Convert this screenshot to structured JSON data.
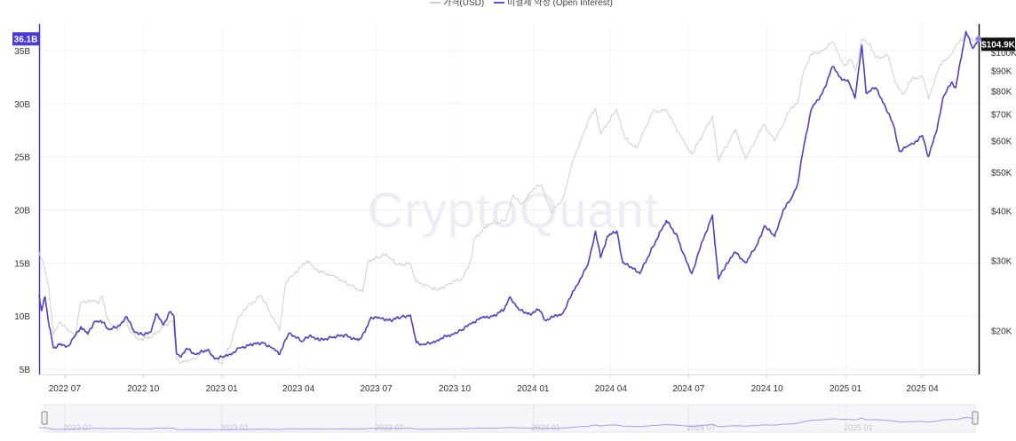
{
  "chart_data": {
    "type": "line",
    "watermark": "CryptoQuant",
    "legend": {
      "price_label": "가격(USD)",
      "oi_label": "미결제 약정 (Open Interest)"
    },
    "colors": {
      "price": "#cfcfcf",
      "oi": "#4f3fc7",
      "axis": "#4b3bd6",
      "badge_dark": "#111111"
    },
    "x_labels": [
      "2022 07",
      "2022 10",
      "2023 01",
      "2023 04",
      "2023 07",
      "2023 10",
      "2024 01",
      "2024 04",
      "2024 07",
      "2024 10",
      "2025 01",
      "2025 04"
    ],
    "x_label_dates": [
      "2022-07-01",
      "2022-10-01",
      "2023-01-01",
      "2023-04-01",
      "2023-07-01",
      "2023-10-01",
      "2024-01-01",
      "2024-04-01",
      "2024-07-01",
      "2024-10-01",
      "2025-01-01",
      "2025-04-01"
    ],
    "x_range": [
      "2022-06-01",
      "2025-06-06"
    ],
    "left_axis": {
      "ticks": [
        "5B",
        "10B",
        "15B",
        "20B",
        "25B",
        "30B",
        "35B"
      ],
      "tick_values": [
        5,
        10,
        15,
        20,
        25,
        30,
        35
      ],
      "range": [
        4.5,
        37.5
      ],
      "unit": "B",
      "current_badge": "36.1B",
      "current_value": 36.1
    },
    "right_axis": {
      "scale": "log",
      "ticks": [
        "$20K",
        "$30K",
        "$40K",
        "$50K",
        "$60K",
        "$70K",
        "$80K",
        "$90K",
        "$100K"
      ],
      "tick_values": [
        20,
        30,
        40,
        50,
        60,
        70,
        80,
        90,
        100
      ],
      "range": [
        15.5,
        118
      ],
      "current_badge": "$104.9K",
      "current_value": 104.9
    },
    "series": [
      {
        "name": "가격(USD)",
        "axis": "right",
        "unit": "K USD",
        "points": [
          [
            "2022-06-01",
            31.5
          ],
          [
            "2022-06-05",
            30.0
          ],
          [
            "2022-06-12",
            26.0
          ],
          [
            "2022-06-18",
            19.5
          ],
          [
            "2022-06-25",
            21.0
          ],
          [
            "2022-07-05",
            20.0
          ],
          [
            "2022-07-13",
            19.5
          ],
          [
            "2022-07-20",
            23.5
          ],
          [
            "2022-07-30",
            23.8
          ],
          [
            "2022-08-10",
            23.5
          ],
          [
            "2022-08-14",
            24.4
          ],
          [
            "2022-08-20",
            21.3
          ],
          [
            "2022-09-01",
            20.0
          ],
          [
            "2022-09-10",
            21.5
          ],
          [
            "2022-09-15",
            20.0
          ],
          [
            "2022-09-25",
            19.0
          ],
          [
            "2022-10-10",
            19.2
          ],
          [
            "2022-10-25",
            20.5
          ],
          [
            "2022-11-05",
            21.2
          ],
          [
            "2022-11-09",
            17.0
          ],
          [
            "2022-11-15",
            16.6
          ],
          [
            "2022-11-30",
            17.0
          ],
          [
            "2022-12-14",
            17.8
          ],
          [
            "2022-12-31",
            16.5
          ],
          [
            "2023-01-12",
            18.5
          ],
          [
            "2023-01-20",
            21.5
          ],
          [
            "2023-02-01",
            23.0
          ],
          [
            "2023-02-16",
            24.5
          ],
          [
            "2023-03-10",
            20.0
          ],
          [
            "2023-03-17",
            26.5
          ],
          [
            "2023-03-25",
            27.5
          ],
          [
            "2023-04-11",
            30.0
          ],
          [
            "2023-04-20",
            28.5
          ],
          [
            "2023-05-10",
            27.5
          ],
          [
            "2023-05-25",
            26.5
          ],
          [
            "2023-06-15",
            25.0
          ],
          [
            "2023-06-22",
            30.0
          ],
          [
            "2023-07-05",
            30.5
          ],
          [
            "2023-07-13",
            31.2
          ],
          [
            "2023-07-25",
            29.2
          ],
          [
            "2023-08-10",
            29.5
          ],
          [
            "2023-08-17",
            26.5
          ],
          [
            "2023-09-01",
            25.8
          ],
          [
            "2023-09-11",
            25.2
          ],
          [
            "2023-09-25",
            26.3
          ],
          [
            "2023-10-10",
            27.0
          ],
          [
            "2023-10-20",
            30.0
          ],
          [
            "2023-10-24",
            34.0
          ],
          [
            "2023-11-10",
            37.0
          ],
          [
            "2023-11-30",
            37.8
          ],
          [
            "2023-12-08",
            43.8
          ],
          [
            "2023-12-18",
            41.5
          ],
          [
            "2024-01-02",
            45.5
          ],
          [
            "2024-01-11",
            46.5
          ],
          [
            "2024-01-22",
            39.5
          ],
          [
            "2024-02-05",
            43.0
          ],
          [
            "2024-02-15",
            52.0
          ],
          [
            "2024-02-28",
            62.0
          ],
          [
            "2024-03-05",
            67.0
          ],
          [
            "2024-03-14",
            72.5
          ],
          [
            "2024-03-20",
            62.5
          ],
          [
            "2024-04-08",
            72.0
          ],
          [
            "2024-04-17",
            61.0
          ],
          [
            "2024-05-01",
            57.5
          ],
          [
            "2024-05-20",
            71.0
          ],
          [
            "2024-06-05",
            71.5
          ],
          [
            "2024-06-24",
            60.5
          ],
          [
            "2024-07-05",
            55.5
          ],
          [
            "2024-07-29",
            69.0
          ],
          [
            "2024-08-05",
            53.5
          ],
          [
            "2024-08-25",
            64.0
          ],
          [
            "2024-09-06",
            54.0
          ],
          [
            "2024-09-27",
            66.0
          ],
          [
            "2024-10-10",
            60.0
          ],
          [
            "2024-10-29",
            72.5
          ],
          [
            "2024-11-06",
            75.0
          ],
          [
            "2024-11-13",
            90.0
          ],
          [
            "2024-11-22",
            99.0
          ],
          [
            "2024-12-05",
            101.0
          ],
          [
            "2024-12-17",
            106.5
          ],
          [
            "2024-12-30",
            92.5
          ],
          [
            "2025-01-07",
            96.0
          ],
          [
            "2025-01-13",
            90.0
          ],
          [
            "2025-01-20",
            108.0
          ],
          [
            "2025-01-30",
            105.0
          ],
          [
            "2025-02-05",
            97.0
          ],
          [
            "2025-02-20",
            98.0
          ],
          [
            "2025-02-28",
            84.0
          ],
          [
            "2025-03-10",
            78.5
          ],
          [
            "2025-03-20",
            86.0
          ],
          [
            "2025-04-02",
            87.0
          ],
          [
            "2025-04-08",
            76.5
          ],
          [
            "2025-04-22",
            93.5
          ],
          [
            "2025-05-01",
            96.5
          ],
          [
            "2025-05-09",
            103.0
          ],
          [
            "2025-05-22",
            111.0
          ],
          [
            "2025-05-28",
            108.0
          ],
          [
            "2025-06-06",
            104.9
          ]
        ]
      },
      {
        "name": "미결제 약정 (Open Interest)",
        "axis": "left",
        "unit": "B USD",
        "points": [
          [
            "2022-06-01",
            12.0
          ],
          [
            "2022-06-04",
            10.5
          ],
          [
            "2022-06-08",
            11.8
          ],
          [
            "2022-06-13",
            9.0
          ],
          [
            "2022-06-18",
            7.0
          ],
          [
            "2022-06-25",
            7.3
          ],
          [
            "2022-07-05",
            7.2
          ],
          [
            "2022-07-12",
            8.0
          ],
          [
            "2022-07-20",
            9.0
          ],
          [
            "2022-07-28",
            8.3
          ],
          [
            "2022-08-05",
            9.5
          ],
          [
            "2022-08-15",
            9.4
          ],
          [
            "2022-08-22",
            8.7
          ],
          [
            "2022-09-01",
            9.0
          ],
          [
            "2022-09-12",
            9.9
          ],
          [
            "2022-09-20",
            8.6
          ],
          [
            "2022-10-01",
            8.2
          ],
          [
            "2022-10-10",
            8.5
          ],
          [
            "2022-10-16",
            10.2
          ],
          [
            "2022-10-25",
            9.2
          ],
          [
            "2022-11-01",
            10.4
          ],
          [
            "2022-11-06",
            10.0
          ],
          [
            "2022-11-09",
            6.5
          ],
          [
            "2022-11-13",
            6.2
          ],
          [
            "2022-11-22",
            6.9
          ],
          [
            "2022-12-01",
            6.4
          ],
          [
            "2022-12-15",
            6.8
          ],
          [
            "2022-12-25",
            6.0
          ],
          [
            "2023-01-05",
            6.2
          ],
          [
            "2023-01-15",
            6.6
          ],
          [
            "2023-01-22",
            7.0
          ],
          [
            "2023-02-05",
            7.3
          ],
          [
            "2023-02-18",
            7.5
          ],
          [
            "2023-03-01",
            7.0
          ],
          [
            "2023-03-10",
            6.4
          ],
          [
            "2023-03-15",
            7.5
          ],
          [
            "2023-03-22",
            8.4
          ],
          [
            "2023-04-05",
            7.6
          ],
          [
            "2023-04-15",
            8.2
          ],
          [
            "2023-04-25",
            7.7
          ],
          [
            "2023-05-10",
            8.0
          ],
          [
            "2023-05-25",
            8.2
          ],
          [
            "2023-06-10",
            7.7
          ],
          [
            "2023-06-18",
            8.5
          ],
          [
            "2023-06-25",
            9.9
          ],
          [
            "2023-07-05",
            9.8
          ],
          [
            "2023-07-18",
            9.6
          ],
          [
            "2023-07-30",
            9.9
          ],
          [
            "2023-08-10",
            10.1
          ],
          [
            "2023-08-17",
            7.5
          ],
          [
            "2023-08-25",
            7.3
          ],
          [
            "2023-09-05",
            7.5
          ],
          [
            "2023-09-15",
            7.9
          ],
          [
            "2023-09-28",
            8.3
          ],
          [
            "2023-10-10",
            8.7
          ],
          [
            "2023-10-20",
            9.3
          ],
          [
            "2023-11-01",
            9.8
          ],
          [
            "2023-11-15",
            10.0
          ],
          [
            "2023-11-28",
            10.6
          ],
          [
            "2023-12-05",
            11.8
          ],
          [
            "2023-12-15",
            10.6
          ],
          [
            "2023-12-28",
            10.2
          ],
          [
            "2024-01-08",
            10.6
          ],
          [
            "2024-01-15",
            9.6
          ],
          [
            "2024-01-25",
            9.9
          ],
          [
            "2024-02-05",
            10.3
          ],
          [
            "2024-02-15",
            12.0
          ],
          [
            "2024-02-25",
            13.5
          ],
          [
            "2024-03-05",
            14.8
          ],
          [
            "2024-03-14",
            18.0
          ],
          [
            "2024-03-20",
            15.5
          ],
          [
            "2024-03-28",
            17.5
          ],
          [
            "2024-04-08",
            18.0
          ],
          [
            "2024-04-15",
            15.0
          ],
          [
            "2024-04-28",
            14.5
          ],
          [
            "2024-05-05",
            14.0
          ],
          [
            "2024-05-20",
            16.5
          ],
          [
            "2024-06-05",
            19.0
          ],
          [
            "2024-06-18",
            17.5
          ],
          [
            "2024-06-24",
            16.0
          ],
          [
            "2024-07-05",
            14.0
          ],
          [
            "2024-07-15",
            16.5
          ],
          [
            "2024-07-29",
            19.5
          ],
          [
            "2024-08-05",
            13.5
          ],
          [
            "2024-08-15",
            15.0
          ],
          [
            "2024-08-25",
            16.0
          ],
          [
            "2024-09-06",
            15.0
          ],
          [
            "2024-09-20",
            16.8
          ],
          [
            "2024-09-28",
            18.5
          ],
          [
            "2024-10-10",
            17.5
          ],
          [
            "2024-10-20",
            20.0
          ],
          [
            "2024-10-29",
            21.0
          ],
          [
            "2024-11-06",
            22.5
          ],
          [
            "2024-11-13",
            26.0
          ],
          [
            "2024-11-22",
            29.5
          ],
          [
            "2024-12-05",
            31.0
          ],
          [
            "2024-12-17",
            33.5
          ],
          [
            "2024-12-25",
            32.5
          ],
          [
            "2025-01-05",
            32.0
          ],
          [
            "2025-01-12",
            30.5
          ],
          [
            "2025-01-20",
            35.5
          ],
          [
            "2025-01-25",
            31.0
          ],
          [
            "2025-02-05",
            31.5
          ],
          [
            "2025-02-15",
            30.0
          ],
          [
            "2025-02-26",
            28.0
          ],
          [
            "2025-03-05",
            25.5
          ],
          [
            "2025-03-15",
            26.0
          ],
          [
            "2025-03-25",
            26.5
          ],
          [
            "2025-04-01",
            27.0
          ],
          [
            "2025-04-08",
            25.0
          ],
          [
            "2025-04-18",
            27.5
          ],
          [
            "2025-04-25",
            30.5
          ],
          [
            "2025-05-05",
            32.0
          ],
          [
            "2025-05-10",
            31.5
          ],
          [
            "2025-05-18",
            35.0
          ],
          [
            "2025-05-22",
            36.8
          ],
          [
            "2025-05-30",
            35.2
          ],
          [
            "2025-06-06",
            36.1
          ]
        ]
      }
    ]
  }
}
